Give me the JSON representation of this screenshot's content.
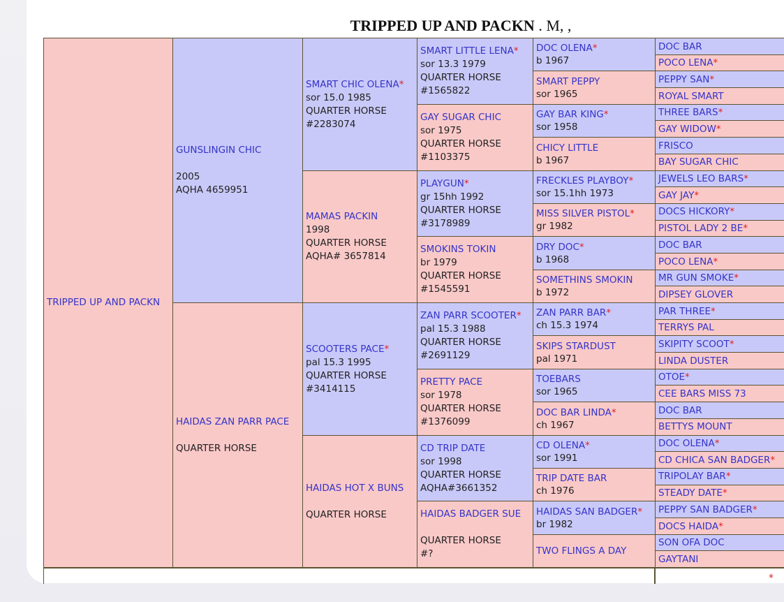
{
  "title": {
    "name": "TRIPPED UP AND PACKN",
    "suffix": ". M, ,"
  },
  "pedigree": [
    [
      {
        "name": "TRIPPED UP AND PACKN",
        "lines": []
      }
    ],
    [
      {
        "name": "GUNSLINGIN CHIC",
        "lines": [
          "2005",
          "AQHA 4659951"
        ]
      },
      {
        "name": "HAIDAS ZAN PARR PACE",
        "lines": [
          "QUARTER HORSE"
        ]
      }
    ],
    [
      {
        "name": "SMART CHIC OLENA",
        "star": "*",
        "lines": [
          "sor 15.0 1985",
          "QUARTER HORSE",
          "#2283074"
        ]
      },
      {
        "name": "MAMAS PACKIN",
        "lines": [
          "1998",
          "QUARTER HORSE",
          "AQHA# 3657814"
        ]
      },
      {
        "name": "SCOOTERS PACE",
        "star": "*",
        "lines": [
          "pal 15.3 1995",
          "QUARTER HORSE",
          "#3414115"
        ]
      },
      {
        "name": "HAIDAS HOT X BUNS",
        "lines": [
          "QUARTER HORSE"
        ]
      }
    ],
    [
      {
        "name": "SMART LITTLE LENA",
        "star": "*",
        "lines": [
          "sor 13.3 1979",
          "QUARTER HORSE",
          "#1565822"
        ]
      },
      {
        "name": "GAY SUGAR CHIC",
        "lines": [
          "sor 1975",
          "QUARTER HORSE",
          "#1103375"
        ]
      },
      {
        "name": "PLAYGUN",
        "star": "*",
        "lines": [
          "gr 15hh 1992",
          "QUARTER HORSE",
          "#3178989"
        ]
      },
      {
        "name": "SMOKINS TOKIN",
        "lines": [
          "br 1979",
          "QUARTER HORSE",
          "#1545591"
        ]
      },
      {
        "name": "ZAN PARR SCOOTER",
        "star": "*",
        "lines": [
          "pal 15.3 1988",
          "QUARTER HORSE",
          "#2691129"
        ]
      },
      {
        "name": "PRETTY PACE",
        "lines": [
          "sor 1978",
          "QUARTER HORSE",
          "#1376099"
        ]
      },
      {
        "name": "CD TRIP DATE",
        "lines": [
          "sor 1998",
          "QUARTER HORSE",
          "AQHA#3661352"
        ]
      },
      {
        "name": "HAIDAS BADGER SUE",
        "lines": [
          "QUARTER HORSE",
          "#?"
        ]
      }
    ],
    [
      {
        "name": "DOC OLENA",
        "star": "*",
        "lines": [
          "b 1967"
        ]
      },
      {
        "name": "SMART PEPPY",
        "lines": [
          "sor 1965"
        ]
      },
      {
        "name": "GAY BAR KING",
        "star": "*",
        "lines": [
          "sor 1958"
        ]
      },
      {
        "name": "CHICY LITTLE",
        "lines": [
          "b 1967"
        ]
      },
      {
        "name": "FRECKLES PLAYBOY",
        "star": "*",
        "lines": [
          "sor 15.1hh 1973"
        ]
      },
      {
        "name": "MISS SILVER PISTOL",
        "star": "*",
        "lines": [
          "gr 1982"
        ]
      },
      {
        "name": "DRY DOC",
        "star": "*",
        "lines": [
          "b 1968"
        ]
      },
      {
        "name": "SOMETHINS SMOKIN",
        "lines": [
          "b 1972"
        ]
      },
      {
        "name": "ZAN PARR BAR",
        "star": "*",
        "lines": [
          "ch 15.3 1974"
        ]
      },
      {
        "name": "SKIPS STARDUST",
        "lines": [
          "pal 1971"
        ]
      },
      {
        "name": "TOEBARS",
        "lines": [
          "sor 1965"
        ]
      },
      {
        "name": "DOC BAR LINDA",
        "star": "*",
        "lines": [
          "ch 1967"
        ]
      },
      {
        "name": "CD OLENA",
        "star": "*",
        "lines": [
          "sor 1991"
        ]
      },
      {
        "name": "TRIP DATE BAR",
        "lines": [
          "ch 1976"
        ]
      },
      {
        "name": "HAIDAS SAN BADGER",
        "star": "*",
        "lines": [
          "br 1982"
        ]
      },
      {
        "name": "TWO FLINGS A DAY",
        "lines": []
      }
    ],
    [
      {
        "name": "DOC BAR",
        "lines": []
      },
      {
        "name": "POCO LENA",
        "star": "*",
        "lines": []
      },
      {
        "name": "PEPPY SAN",
        "star": "*",
        "lines": []
      },
      {
        "name": "ROYAL SMART",
        "lines": []
      },
      {
        "name": "THREE BARS",
        "star": "*",
        "lines": []
      },
      {
        "name": "GAY WIDOW",
        "star": "*",
        "lines": []
      },
      {
        "name": "FRISCO",
        "lines": []
      },
      {
        "name": "BAY SUGAR CHIC",
        "lines": []
      },
      {
        "name": "JEWELS LEO BARS",
        "star": "*",
        "lines": []
      },
      {
        "name": "GAY JAY",
        "star": "*",
        "lines": []
      },
      {
        "name": "DOCS HICKORY",
        "star": "*",
        "lines": []
      },
      {
        "name": "PISTOL LADY 2 BE",
        "star": "*",
        "lines": []
      },
      {
        "name": "DOC BAR",
        "lines": []
      },
      {
        "name": "POCO LENA",
        "star": "*",
        "lines": []
      },
      {
        "name": "MR GUN SMOKE",
        "star": "*",
        "lines": []
      },
      {
        "name": "DIPSEY GLOVER",
        "lines": []
      },
      {
        "name": "PAR THREE",
        "star": "*",
        "lines": []
      },
      {
        "name": "TERRYS PAL",
        "lines": []
      },
      {
        "name": "SKIPITY SCOOT",
        "star": "*",
        "lines": []
      },
      {
        "name": "LINDA DUSTER",
        "lines": []
      },
      {
        "name": "OTOE",
        "star": "*",
        "lines": []
      },
      {
        "name": "CEE BARS MISS 73",
        "lines": []
      },
      {
        "name": "DOC BAR",
        "lines": []
      },
      {
        "name": "BETTYS MOUNT",
        "lines": []
      },
      {
        "name": "DOC OLENA",
        "star": "*",
        "lines": []
      },
      {
        "name": "CD CHICA SAN BADGER",
        "star": "*",
        "lines": []
      },
      {
        "name": "TRIPOLAY BAR",
        "star": "*",
        "lines": []
      },
      {
        "name": "STEADY DATE",
        "star": "*",
        "lines": []
      },
      {
        "name": "PEPPY SAN BADGER",
        "star": "*",
        "lines": []
      },
      {
        "name": "DOCS HAIDA",
        "star": "*",
        "lines": []
      },
      {
        "name": "SON OFA DOC",
        "lines": []
      },
      {
        "name": "GAYTANI",
        "lines": []
      }
    ]
  ],
  "footer": {
    "mark": "*"
  }
}
